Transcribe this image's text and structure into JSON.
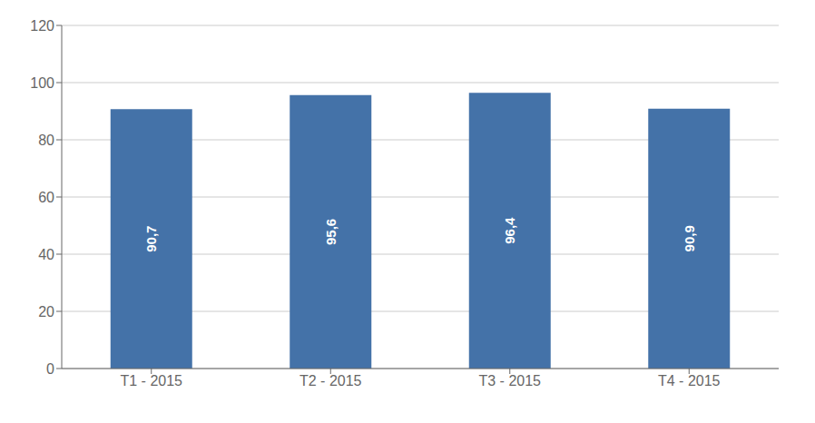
{
  "chart_data": {
    "type": "bar",
    "categories": [
      "T1 - 2015",
      "T2 - 2015",
      "T3 - 2015",
      "T4 - 2015"
    ],
    "values": [
      90.7,
      95.6,
      96.4,
      90.9
    ],
    "value_labels": [
      "90,7",
      "95,6",
      "96,4",
      "90,9"
    ],
    "data_labels": true,
    "color": "#4472a8",
    "ylim": [
      0,
      120
    ],
    "yticks": [
      0,
      20,
      40,
      60,
      80,
      100,
      120
    ],
    "grid": true
  }
}
